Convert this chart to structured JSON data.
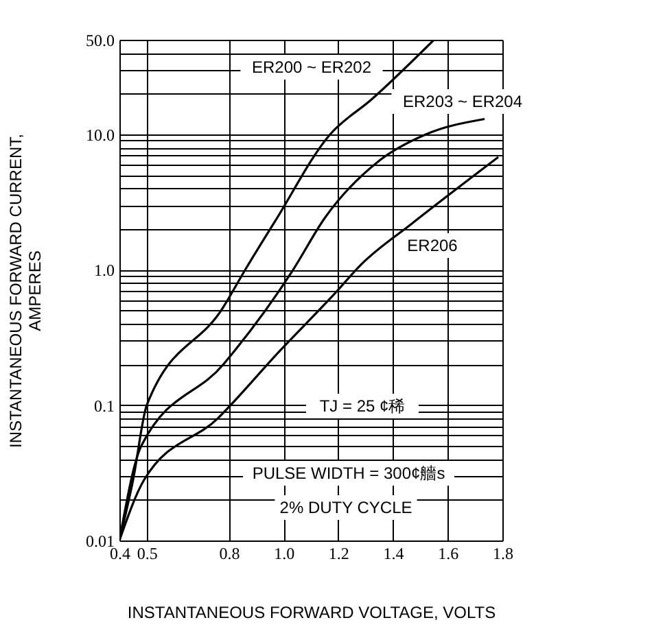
{
  "chart_data": {
    "type": "line",
    "xlabel": "INSTANTANEOUS FORWARD VOLTAGE, VOLTS",
    "ylabel": "INSTANTANEOUS FORWARD CURRENT,\nAMPERES",
    "log": "y",
    "grid": true,
    "legend": false,
    "marker": "none",
    "line_style": "solid",
    "xlim": [
      0.4,
      1.8
    ],
    "xticks": [
      0.4,
      0.5,
      0.8,
      {
        "value": 1.0,
        "label": "1.0"
      },
      1.2,
      1.4,
      1.6,
      1.8
    ],
    "ylim": [
      0.01,
      50
    ],
    "yticks": [
      0.01,
      {
        "value": 0.02,
        "label": null
      },
      {
        "value": 0.03,
        "label": null
      },
      {
        "value": 0.04,
        "label": null
      },
      {
        "value": 0.05,
        "label": null
      },
      {
        "value": 0.06,
        "label": null
      },
      {
        "value": 0.07,
        "label": null
      },
      {
        "value": 0.08,
        "label": null
      },
      {
        "value": 0.09,
        "label": null
      },
      0.1,
      {
        "value": 0.2,
        "label": null
      },
      {
        "value": 0.3,
        "label": null
      },
      {
        "value": 0.4,
        "label": null
      },
      {
        "value": 0.5,
        "label": null
      },
      {
        "value": 0.6,
        "label": null
      },
      {
        "value": 0.7,
        "label": null
      },
      {
        "value": 0.8,
        "label": null
      },
      {
        "value": 0.9,
        "label": null
      },
      {
        "value": 1,
        "label": "1.0"
      },
      {
        "value": 2,
        "label": null
      },
      {
        "value": 3,
        "label": null
      },
      {
        "value": 4,
        "label": null
      },
      {
        "value": 5,
        "label": null
      },
      {
        "value": 6,
        "label": null
      },
      {
        "value": 7,
        "label": null
      },
      {
        "value": 8,
        "label": null
      },
      {
        "value": 9,
        "label": null
      },
      {
        "value": 10,
        "label": "10.0"
      },
      {
        "value": 20,
        "label": null
      },
      {
        "value": 30,
        "label": null
      },
      {
        "value": 40,
        "label": null
      },
      {
        "value": 50,
        "label": "50.0"
      }
    ],
    "series": [
      {
        "name": "ER200 ~ ER202",
        "color": "#000000",
        "x": [
          0.4,
          0.45,
          0.5,
          0.78,
          0.86,
          0.97,
          1.17,
          1.32,
          1.55
        ],
        "values": [
          0.01,
          0.028,
          0.1,
          0.53,
          1.0,
          2.3,
          10,
          18,
          50
        ]
      },
      {
        "name": "ER203 ~ ER204",
        "color": "#000000",
        "x": [
          0.4,
          0.48,
          0.78,
          1.035,
          1.15,
          1.35,
          1.52,
          1.735
        ],
        "values": [
          0.01,
          0.05,
          0.2,
          1.0,
          2.4,
          6.4,
          10,
          13
        ]
      },
      {
        "name": "ER206",
        "color": "#000000",
        "x": [
          0.4,
          0.49,
          0.76,
          0.985,
          1.185,
          1.285,
          1.47,
          1.785
        ],
        "values": [
          0.01,
          0.028,
          0.08,
          0.25,
          0.66,
          1.1,
          2.2,
          6.8
        ]
      }
    ],
    "annotations": [
      "TJ = 25 ¢稀",
      "PULSE WIDTH = 300¢艢s",
      "2% DUTY CYCLE"
    ]
  }
}
